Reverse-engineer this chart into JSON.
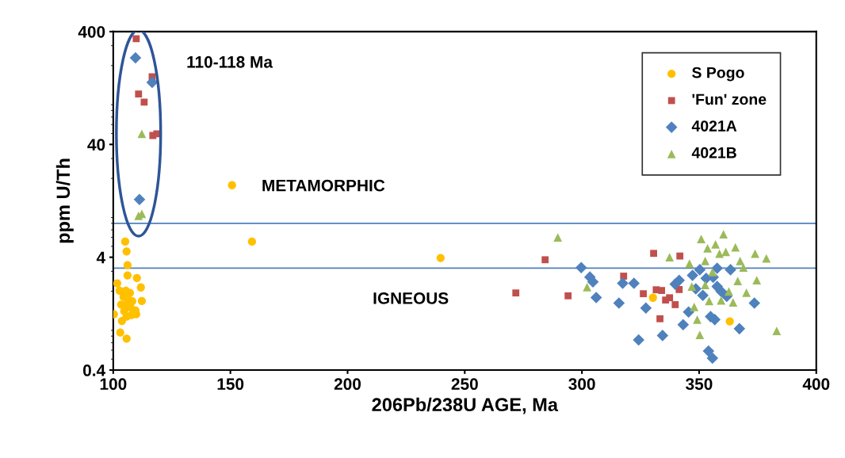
{
  "chart_data": {
    "type": "scatter",
    "xlabel": "206Pb/238U AGE, Ma",
    "ylabel": "ppm U/Th",
    "log": "y",
    "xlim": [
      100,
      400
    ],
    "xticks": [
      100,
      150,
      200,
      250,
      300,
      350,
      400
    ],
    "ylim": [
      0.4,
      400
    ],
    "yticks": [
      0.4,
      4,
      40,
      400
    ],
    "grid": false,
    "legend": "top right",
    "series": [
      {
        "name": "S Pogo",
        "color": "#ffc000",
        "marker": "circle",
        "x": [
          105.1,
          105.7,
          106.1,
          106.1,
          101.7,
          102.7,
          105.4,
          107.1,
          104.4,
          106.4,
          108.1,
          111.8,
          112.2,
          103.4,
          105.7,
          107.4,
          104.7,
          109.5,
          100.3,
          105.7,
          103.7,
          107.8,
          109.8,
          103.0,
          105.7,
          110.1,
          150.7,
          159.2,
          239.7,
          330.3,
          363.1
        ],
        "values": [
          5.5,
          4.5,
          3.4,
          2.76,
          2.35,
          2.02,
          2.02,
          1.93,
          1.78,
          1.7,
          1.63,
          2.16,
          1.64,
          1.52,
          1.52,
          1.44,
          1.33,
          1.35,
          1.25,
          1.19,
          1.09,
          1.23,
          1.25,
          0.86,
          0.76,
          2.62,
          17.4,
          5.5,
          3.94,
          1.75,
          1.08
        ]
      },
      {
        "name": "'Fun' zone",
        "color": "#c0504d",
        "marker": "square",
        "x": [
          109.8,
          116.6,
          110.8,
          113.2,
          116.9,
          118.6,
          284.3,
          271.8,
          294.1,
          317.8,
          330.6,
          331.7,
          334.0,
          326.2,
          335.7,
          341.8,
          337.4,
          339.8,
          333.3,
          341.5
        ],
        "values": [
          346,
          159,
          112,
          95,
          48,
          49.6,
          3.8,
          1.93,
          1.82,
          2.72,
          4.33,
          2.06,
          2.03,
          1.9,
          1.67,
          4.1,
          1.75,
          1.52,
          1.14,
          2.07
        ]
      },
      {
        "name": "4021A",
        "color": "#4f81bd",
        "marker": "diamond",
        "x": [
          109.5,
          116.6,
          111.2,
          299.7,
          303.4,
          304.7,
          306.1,
          315.8,
          317.4,
          322.2,
          324.2,
          327.3,
          334.4,
          339.8,
          341.5,
          343.2,
          345.5,
          347.2,
          348.6,
          350.3,
          351.6,
          353.0,
          354.0,
          355.7,
          356.0,
          356.7,
          357.7,
          359.4,
          357.7,
          361.8,
          363.4,
          367.2,
          373.6,
          354.9
        ],
        "values": [
          234,
          142,
          13.0,
          3.24,
          2.67,
          2.42,
          1.76,
          1.57,
          2.35,
          2.35,
          0.74,
          1.42,
          0.81,
          2.31,
          2.5,
          1.01,
          1.31,
          2.76,
          2.1,
          3.1,
          1.84,
          2.6,
          0.59,
          0.51,
          2.66,
          1.12,
          2.2,
          1.99,
          3.2,
          1.8,
          3.1,
          0.93,
          1.57,
          1.19
        ]
      },
      {
        "name": "4021B",
        "color": "#9bbb59",
        "marker": "triangle",
        "x": [
          112.2,
          112.2,
          110.8,
          289.7,
          302.2,
          337.4,
          345.9,
          346.9,
          347.9,
          349.2,
          350.9,
          350.3,
          352.6,
          353.6,
          354.3,
          355.7,
          357.0,
          358.7,
          359.4,
          360.4,
          361.4,
          364.5,
          365.5,
          366.5,
          367.5,
          368.9,
          370.2,
          373.9,
          374.6,
          378.7,
          383.1,
          362.7,
          352.6
        ],
        "values": [
          49.7,
          9.7,
          9.3,
          5.99,
          2.17,
          4.0,
          3.52,
          2.2,
          1.45,
          1.12,
          5.8,
          0.82,
          3.7,
          4.8,
          1.64,
          2.95,
          5.2,
          4.3,
          1.66,
          6.4,
          4.46,
          1.59,
          4.9,
          2.46,
          3.7,
          3.24,
          1.94,
          4.3,
          2.5,
          3.9,
          0.89,
          1.99,
          2.27
        ]
      }
    ],
    "ref_lines": [
      {
        "axis": "y",
        "value": 8,
        "color": "#4f81bd"
      },
      {
        "axis": "y",
        "value": 3.2,
        "color": "#4f81bd"
      }
    ],
    "annotations": [
      "110-118 Ma",
      "METAMORPHIC",
      "IGNEOUS"
    ]
  }
}
